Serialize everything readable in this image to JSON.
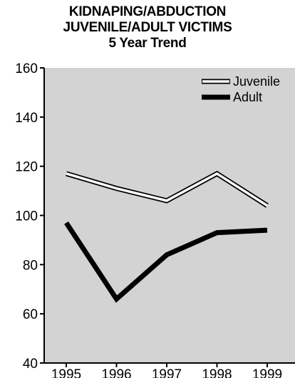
{
  "chart_data": {
    "type": "line",
    "title_lines": [
      "KIDNAPING/ABDUCTION",
      "JUVENILE/ADULT VICTIMS",
      "5 Year Trend"
    ],
    "categories": [
      "1995",
      "1996",
      "1997",
      "1998",
      "1999"
    ],
    "series": [
      {
        "name": "Juvenile",
        "values": [
          117,
          111,
          106,
          117,
          104
        ],
        "style": "hollow"
      },
      {
        "name": "Adult",
        "values": [
          97,
          66,
          84,
          93,
          94
        ],
        "style": "solid"
      }
    ],
    "ylim": [
      40,
      160
    ],
    "yticks": [
      40,
      60,
      80,
      100,
      120,
      140,
      160
    ],
    "ytick_labels": [
      "40",
      "60",
      "80",
      "100",
      "120",
      "140",
      "160"
    ],
    "grid": false,
    "legend_position": "top-right",
    "colors": {
      "plot_background": "#d3d3d3",
      "line": "#000000",
      "hollow_fill": "#ffffff"
    }
  }
}
